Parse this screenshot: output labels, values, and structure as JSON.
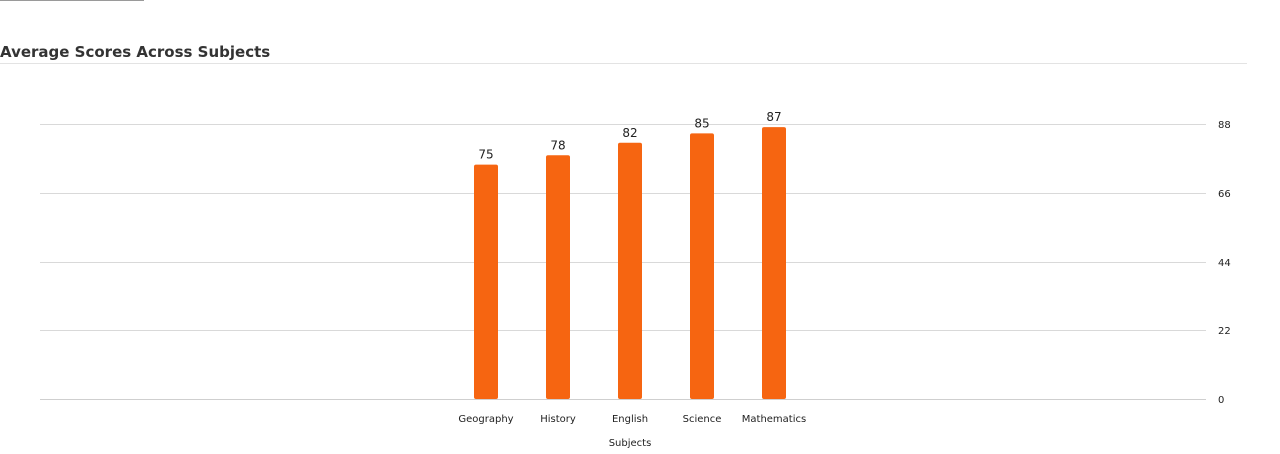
{
  "page": {
    "title": "Average Scores Across Subjects"
  },
  "chart_data": {
    "type": "bar",
    "title": "Average Scores Across Subjects",
    "xlabel": "Subjects",
    "ylabel": "",
    "categories": [
      "Geography",
      "History",
      "English",
      "Science",
      "Mathematics"
    ],
    "values": [
      75,
      78,
      82,
      85,
      87
    ],
    "ylim": [
      0,
      88
    ],
    "yticks": [
      0,
      22,
      44,
      66,
      88
    ],
    "y_axis_side": "right",
    "grid": true,
    "legend": "none",
    "bar_color": "#f66511",
    "data_labels": true
  }
}
